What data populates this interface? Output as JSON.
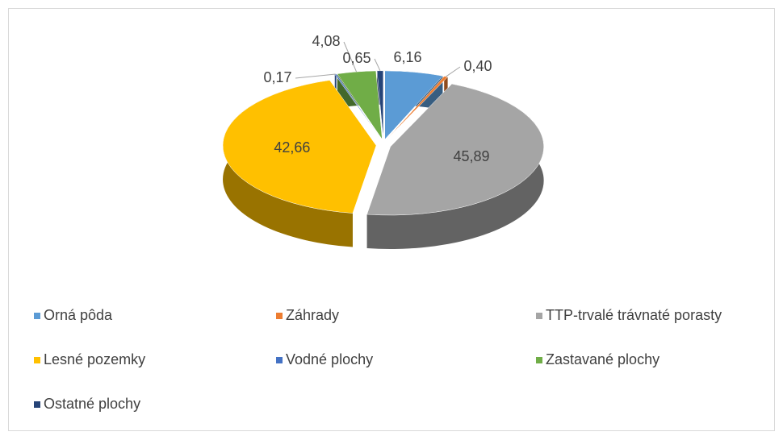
{
  "chart_data": {
    "type": "pie",
    "categories": [
      "Orná pôda",
      "Záhrady",
      "TTP-trvalé trávnaté porasty",
      "Lesné pozemky",
      "Vodné plochy",
      "Zastavané plochy",
      "Ostatné plochy"
    ],
    "values": [
      6.16,
      0.4,
      45.89,
      42.66,
      0.17,
      4.08,
      0.65
    ],
    "value_labels": [
      "6,16",
      "0,40",
      "45,89",
      "42,66",
      "0,17",
      "4,08",
      "0,65"
    ],
    "colors": [
      "#5b9bd5",
      "#ed7d31",
      "#a5a5a5",
      "#ffc000",
      "#4472c4",
      "#70ad47",
      "#264478"
    ],
    "legend": "bottom"
  }
}
